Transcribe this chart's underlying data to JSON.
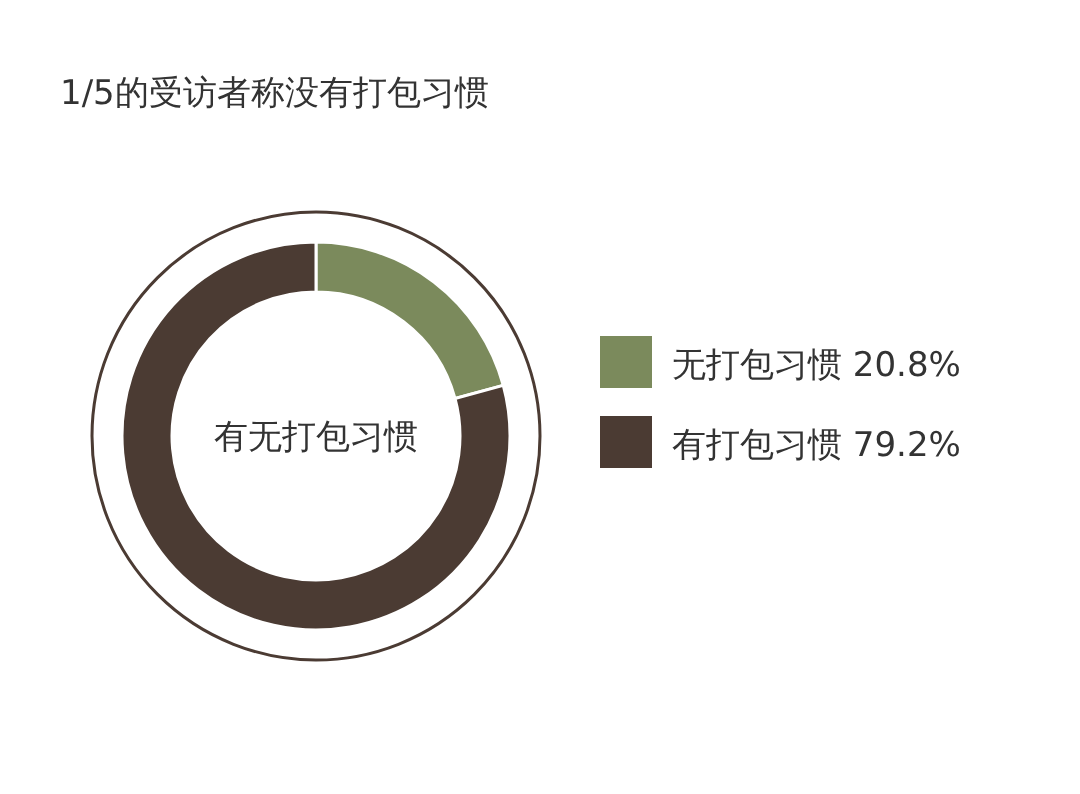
{
  "chart_data": {
    "type": "donut",
    "title": "1/5的受访者称没有打包习惯",
    "categories": [
      "无打包习惯",
      "有打包习惯"
    ],
    "values": [
      20.8,
      79.2
    ],
    "value_labels": [
      "20.8%",
      "79.2%"
    ],
    "colors": [
      "#7b8a5c",
      "#4b3b33"
    ],
    "annotations": [
      "有无打包习惯"
    ],
    "legend": "right"
  }
}
